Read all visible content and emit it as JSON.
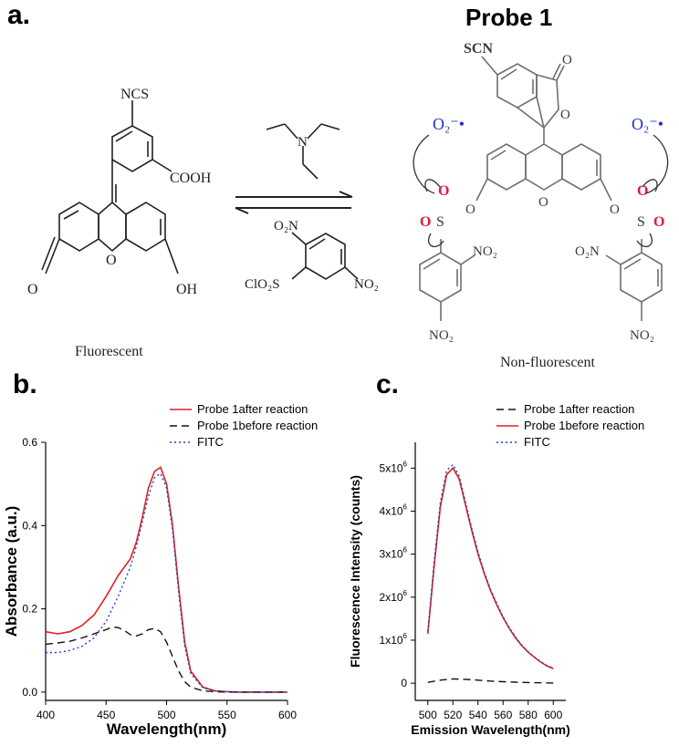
{
  "panels": {
    "a": {
      "label": "a."
    },
    "b": {
      "label": "b."
    },
    "c": {
      "label": "c."
    }
  },
  "scheme": {
    "probe_title": "Probe 1",
    "left_caption": "Fluorescent",
    "right_caption": "Non-fluorescent",
    "left_labels": {
      "ncs": "NCS",
      "cooh": "COOH",
      "oh": "OH",
      "o_ketone": "O",
      "o_ring": "O"
    },
    "reagent_labels": {
      "n": "N",
      "o2n": "O₂N",
      "clo2s": "ClO₂S",
      "no2": "NO₂"
    },
    "right_labels": {
      "scn": "SCN",
      "o_top": "O",
      "o_lactone": "O",
      "o_ring": "O",
      "superoxide_left": "O₂⁻•",
      "superoxide_right": "O₂⁻•",
      "s_left": "S",
      "s_right": "S",
      "o_ester_left": "O",
      "o_ester_right": "O",
      "o_sulf_l1": "O",
      "o_sulf_l2": "O",
      "o_sulf_r1": "O",
      "o_sulf_r2": "O",
      "no2_l_ortho": "NO₂",
      "no2_l_para": "NO₂",
      "o2n_r_ortho": "O₂N",
      "no2_r_para": "NO₂"
    },
    "colors": {
      "structure": "#222222",
      "probe_structure": "#6e6e6e",
      "superoxide": "#1f2fd6",
      "sulfonyl_o": "#e0193a"
    }
  },
  "chart_data": [
    {
      "id": "b",
      "type": "line",
      "xlabel": "Wavelength(nm)",
      "ylabel": "Absorbance (a.u.)",
      "xlim": [
        400,
        600
      ],
      "ylim": [
        -0.02,
        0.6
      ],
      "xticks": [
        400,
        450,
        500,
        550,
        600
      ],
      "xtick_labels": [
        "400",
        "450",
        "500",
        "550",
        "600"
      ],
      "yticks": [
        0.0,
        0.2,
        0.4,
        0.6
      ],
      "ytick_labels": [
        "0.0",
        "0.2",
        "0.4",
        "0.6"
      ],
      "legend_position": "top-right",
      "series": [
        {
          "name": "Probe 1after reaction",
          "color": "#e02020",
          "dash": "solid",
          "x": [
            400,
            410,
            420,
            430,
            440,
            450,
            460,
            470,
            475,
            480,
            485,
            490,
            495,
            500,
            505,
            510,
            515,
            520,
            530,
            540,
            550,
            560,
            570,
            580,
            590,
            600
          ],
          "y": [
            0.145,
            0.14,
            0.145,
            0.16,
            0.185,
            0.23,
            0.28,
            0.32,
            0.36,
            0.42,
            0.49,
            0.53,
            0.54,
            0.5,
            0.4,
            0.25,
            0.12,
            0.05,
            0.012,
            0.003,
            0.001,
            0.0,
            0.0,
            0.0,
            0.0,
            0.0
          ]
        },
        {
          "name": "Probe 1before reaction",
          "color": "#111111",
          "dash": "dashed",
          "x": [
            400,
            410,
            420,
            430,
            440,
            450,
            455,
            460,
            465,
            470,
            475,
            480,
            485,
            490,
            495,
            500,
            505,
            510,
            515,
            520,
            530,
            540,
            550,
            560,
            570,
            580,
            590,
            600
          ],
          "y": [
            0.115,
            0.118,
            0.122,
            0.13,
            0.14,
            0.15,
            0.156,
            0.155,
            0.148,
            0.138,
            0.135,
            0.14,
            0.15,
            0.153,
            0.145,
            0.12,
            0.085,
            0.05,
            0.025,
            0.012,
            0.003,
            0.001,
            0.0,
            0.0,
            0.0,
            0.0,
            0.0,
            0.0
          ]
        },
        {
          "name": "FITC",
          "color": "#1f3fd6",
          "dash": "dotted",
          "x": [
            400,
            410,
            420,
            430,
            440,
            450,
            460,
            470,
            475,
            480,
            485,
            490,
            495,
            500,
            505,
            510,
            515,
            520,
            530,
            540,
            550,
            560,
            570,
            580,
            590,
            600
          ],
          "y": [
            0.095,
            0.095,
            0.1,
            0.11,
            0.13,
            0.17,
            0.23,
            0.3,
            0.35,
            0.41,
            0.47,
            0.515,
            0.525,
            0.49,
            0.39,
            0.24,
            0.11,
            0.045,
            0.01,
            0.003,
            0.001,
            0.0,
            0.0,
            0.0,
            0.0,
            0.0
          ]
        }
      ]
    },
    {
      "id": "c",
      "type": "line",
      "xlabel": "Emission Wavelength(nm)",
      "ylabel": "Fluorescence Intensity (counts)",
      "xlim": [
        490,
        610
      ],
      "ylim": [
        -400000,
        5600000
      ],
      "xticks": [
        500,
        520,
        540,
        560,
        580,
        600
      ],
      "xtick_labels": [
        "500",
        "520",
        "540",
        "560",
        "580",
        "600"
      ],
      "yticks": [
        0,
        1000000,
        2000000,
        3000000,
        4000000,
        5000000
      ],
      "ytick_mantissa": [
        "0",
        "1x10",
        "2x10",
        "3x10",
        "4x10",
        "5x10"
      ],
      "ytick_exponent": [
        "",
        "6",
        "6",
        "6",
        "6",
        "6"
      ],
      "legend_position": "top-right",
      "series": [
        {
          "name": "Probe 1after reaction",
          "color": "#111111",
          "dash": "dashed",
          "x": [
            500,
            510,
            520,
            530,
            540,
            550,
            560,
            570,
            580,
            590,
            600
          ],
          "y": [
            20000,
            70000,
            100000,
            90000,
            70000,
            50000,
            35000,
            25000,
            15000,
            10000,
            5000
          ]
        },
        {
          "name": "Probe 1before reaction",
          "color": "#e02020",
          "dash": "solid",
          "x": [
            500,
            505,
            510,
            515,
            520,
            525,
            530,
            535,
            540,
            545,
            550,
            555,
            560,
            565,
            570,
            575,
            580,
            585,
            590,
            595,
            600
          ],
          "y": [
            1150000,
            2700000,
            4100000,
            4850000,
            5000000,
            4750000,
            4150000,
            3550000,
            3000000,
            2550000,
            2150000,
            1820000,
            1520000,
            1270000,
            1050000,
            870000,
            720000,
            600000,
            490000,
            400000,
            340000
          ]
        },
        {
          "name": "FITC",
          "color": "#1f3fd6",
          "dash": "dotted",
          "x": [
            500,
            505,
            510,
            515,
            520,
            525,
            530,
            535,
            540,
            545,
            550,
            555,
            560,
            565,
            570,
            575,
            580,
            585,
            590,
            595,
            600
          ],
          "y": [
            1200000,
            2800000,
            4200000,
            4950000,
            5080000,
            4820000,
            4220000,
            3600000,
            3050000,
            2580000,
            2180000,
            1850000,
            1540000,
            1290000,
            1070000,
            880000,
            730000,
            610000,
            500000,
            410000,
            350000
          ]
        }
      ]
    }
  ]
}
